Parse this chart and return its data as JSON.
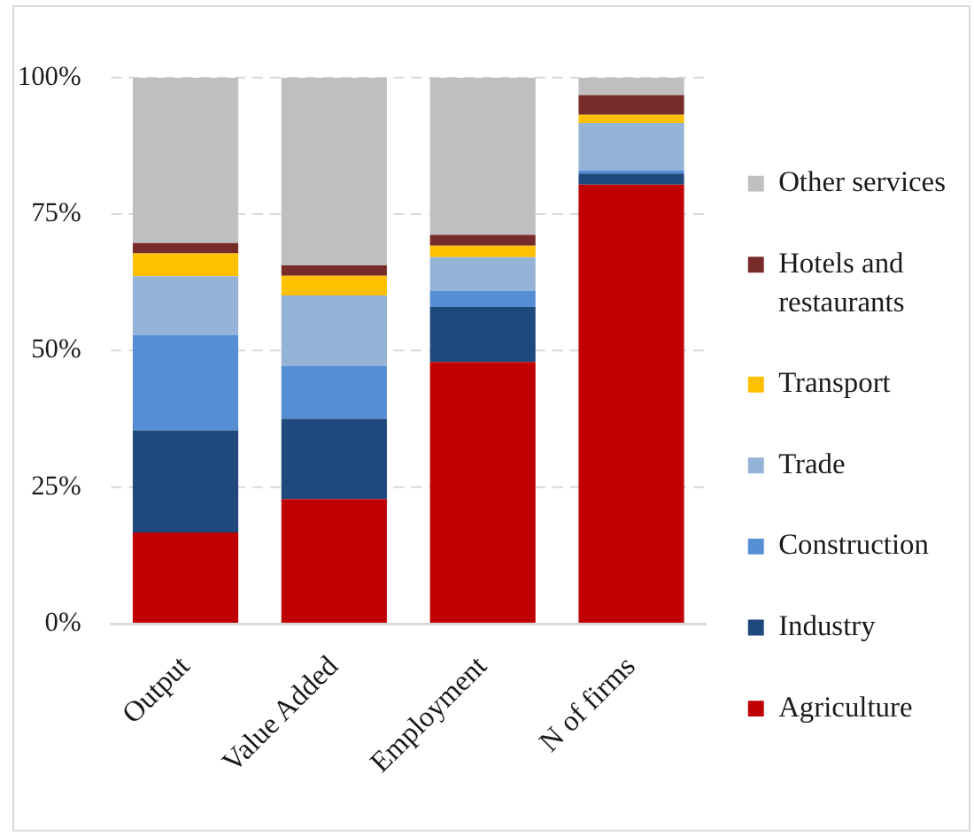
{
  "chart_data": {
    "type": "bar",
    "stacked": true,
    "categories": [
      "Output",
      "Value Added",
      "Employment",
      "N of firms"
    ],
    "series": [
      {
        "name": "Agriculture",
        "color": "#c00000",
        "values": [
          16.7,
          22.8,
          47.9,
          80.4
        ]
      },
      {
        "name": "Industry",
        "color": "#1f497d",
        "values": [
          18.7,
          14.7,
          10.1,
          2.0
        ]
      },
      {
        "name": "Construction",
        "color": "#558ed5",
        "values": [
          17.5,
          9.7,
          3.0,
          0.6
        ]
      },
      {
        "name": "Trade",
        "color": "#95b3d7",
        "values": [
          10.7,
          12.9,
          6.1,
          8.7
        ]
      },
      {
        "name": "Transport",
        "color": "#ffc000",
        "values": [
          4.2,
          3.6,
          2.1,
          1.5
        ]
      },
      {
        "name": "Hotels and restaurants",
        "color": "#772c2a",
        "values": [
          1.9,
          1.9,
          2.0,
          3.6
        ]
      },
      {
        "name": "Other services",
        "color": "#bfbfbf",
        "values": [
          30.3,
          34.4,
          28.8,
          3.2
        ]
      }
    ],
    "ylim": [
      0,
      100
    ],
    "yticks": [
      {
        "value": 0,
        "label": "0%"
      },
      {
        "value": 25,
        "label": "25%"
      },
      {
        "value": 50,
        "label": "50%"
      },
      {
        "value": 75,
        "label": "75%"
      },
      {
        "value": 100,
        "label": "100%"
      }
    ],
    "grid": "y",
    "legend": "right"
  }
}
